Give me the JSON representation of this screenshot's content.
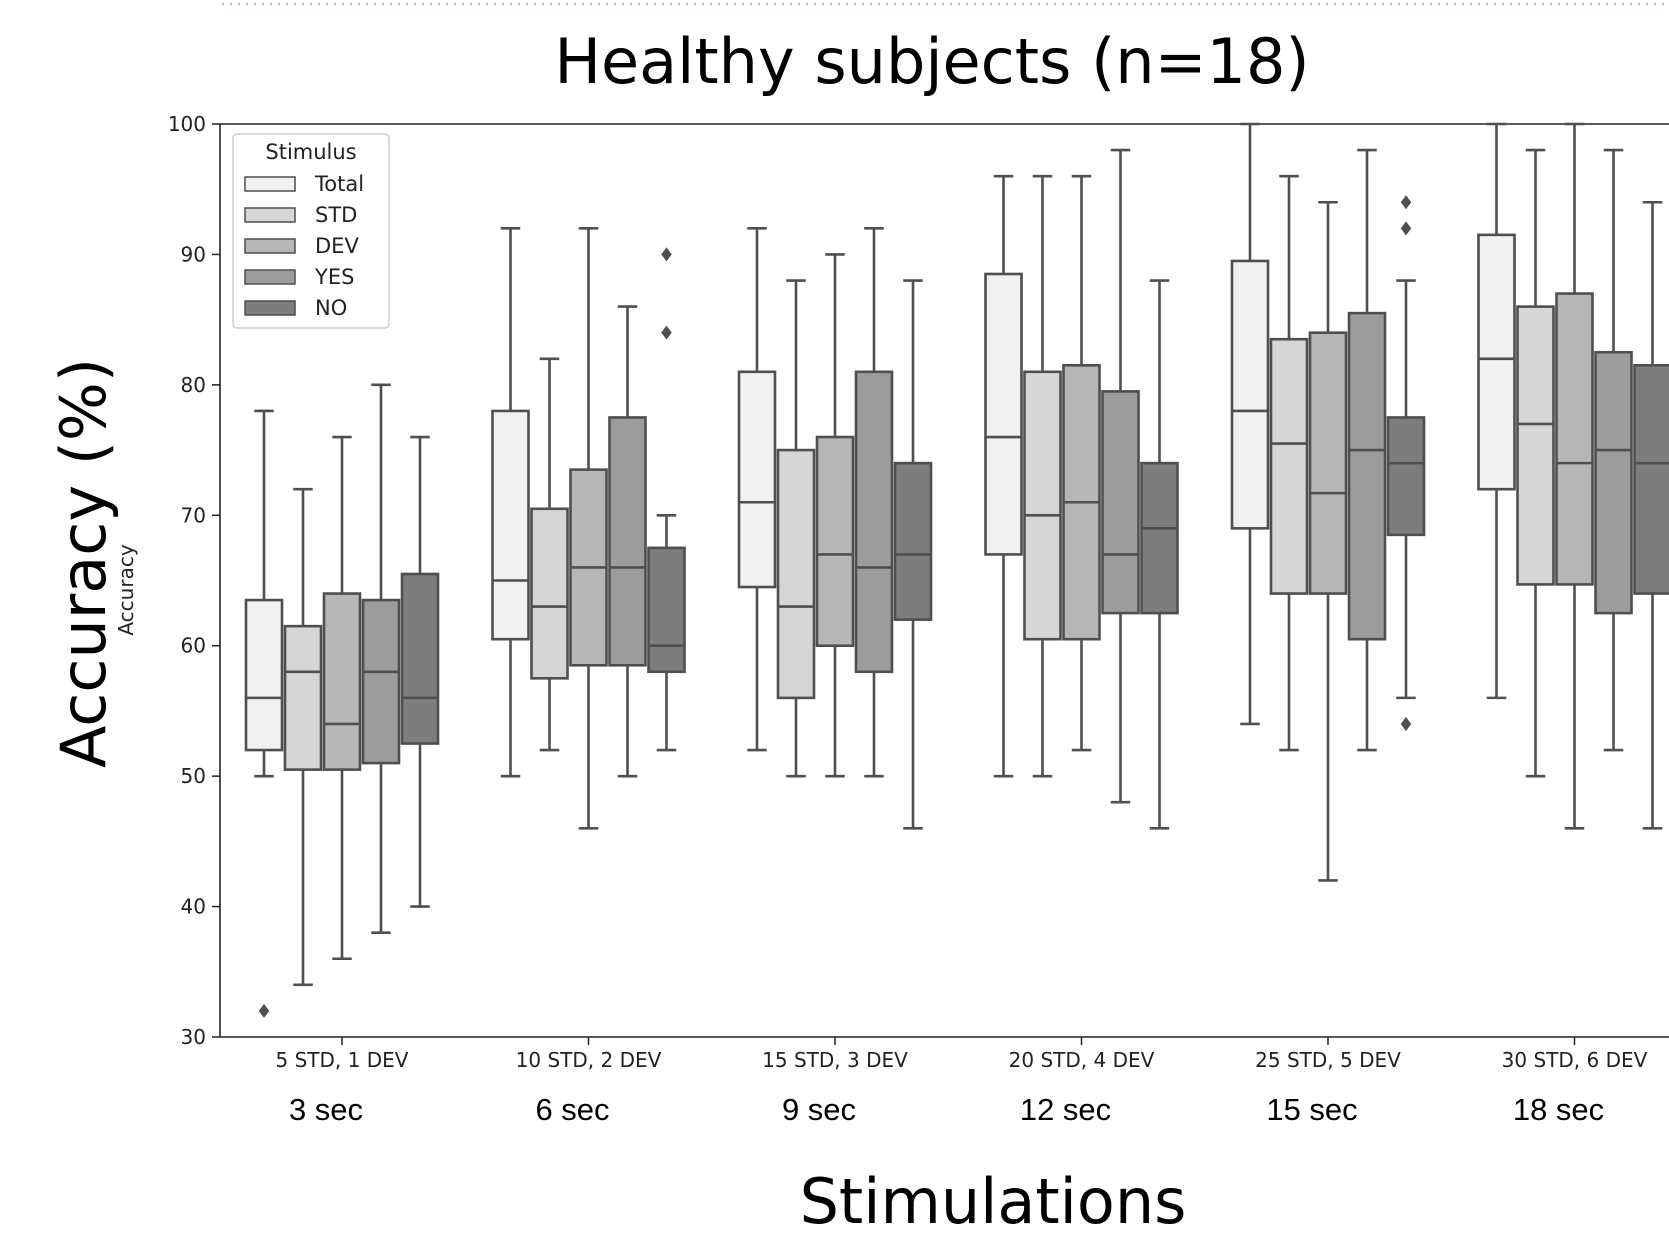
{
  "slide": {
    "title": "Healthy subjects (n=18)",
    "y_label": "Accuracy (%)",
    "x_label": "Stimulations"
  },
  "chart_data": {
    "type": "box",
    "ylabel": "Accuracy",
    "ylim": [
      30,
      100
    ],
    "yticks": [
      30,
      40,
      50,
      60,
      70,
      80,
      90,
      100
    ],
    "grid": false,
    "legend": {
      "title": "Stimulus",
      "placement": "top-left",
      "entries": [
        "Total",
        "STD",
        "DEV",
        "YES",
        "NO"
      ]
    },
    "categories": [
      "5 STD, 1 DEV",
      "10 STD, 2 DEV",
      "15 STD, 3 DEV",
      "20 STD, 4 DEV",
      "25 STD, 5 DEV",
      "30 STD, 6 DEV"
    ],
    "durations": [
      "3 sec",
      "6 sec",
      "9 sec",
      "12 sec",
      "15 sec",
      "18 sec"
    ],
    "series_colors": [
      "#f1f1f1",
      "#d6d6d6",
      "#b6b6b6",
      "#9c9c9c",
      "#7d7d7d"
    ],
    "series": [
      {
        "name": "Total",
        "boxes": [
          {
            "whislo": 50,
            "q1": 52,
            "med": 56,
            "q3": 63.5,
            "whishi": 78,
            "fliers": [
              32
            ]
          },
          {
            "whislo": 50,
            "q1": 60.5,
            "med": 65,
            "q3": 78,
            "whishi": 92,
            "fliers": []
          },
          {
            "whislo": 52,
            "q1": 64.5,
            "med": 71,
            "q3": 81,
            "whishi": 92,
            "fliers": []
          },
          {
            "whislo": 50,
            "q1": 67,
            "med": 76,
            "q3": 88.5,
            "whishi": 96,
            "fliers": []
          },
          {
            "whislo": 54,
            "q1": 69,
            "med": 78,
            "q3": 89.5,
            "whishi": 100,
            "fliers": []
          },
          {
            "whislo": 56,
            "q1": 72,
            "med": 82,
            "q3": 91.5,
            "whishi": 100,
            "fliers": []
          }
        ]
      },
      {
        "name": "STD",
        "boxes": [
          {
            "whislo": 34,
            "q1": 50.5,
            "med": 58,
            "q3": 61.5,
            "whishi": 72,
            "fliers": []
          },
          {
            "whislo": 52,
            "q1": 57.5,
            "med": 63,
            "q3": 70.5,
            "whishi": 82,
            "fliers": []
          },
          {
            "whislo": 50,
            "q1": 56,
            "med": 63,
            "q3": 75,
            "whishi": 88,
            "fliers": []
          },
          {
            "whislo": 50,
            "q1": 60.5,
            "med": 70,
            "q3": 81,
            "whishi": 96,
            "fliers": []
          },
          {
            "whislo": 52,
            "q1": 64,
            "med": 75.5,
            "q3": 83.5,
            "whishi": 96,
            "fliers": []
          },
          {
            "whislo": 50,
            "q1": 64.7,
            "med": 77,
            "q3": 86,
            "whishi": 98,
            "fliers": []
          }
        ]
      },
      {
        "name": "DEV",
        "boxes": [
          {
            "whislo": 36,
            "q1": 50.5,
            "med": 54,
            "q3": 64,
            "whishi": 76,
            "fliers": []
          },
          {
            "whislo": 46,
            "q1": 58.5,
            "med": 66,
            "q3": 73.5,
            "whishi": 92,
            "fliers": []
          },
          {
            "whislo": 50,
            "q1": 60,
            "med": 67,
            "q3": 76,
            "whishi": 90,
            "fliers": []
          },
          {
            "whislo": 52,
            "q1": 60.5,
            "med": 71,
            "q3": 81.5,
            "whishi": 96,
            "fliers": []
          },
          {
            "whislo": 42,
            "q1": 64,
            "med": 71.7,
            "q3": 84,
            "whishi": 94,
            "fliers": []
          },
          {
            "whislo": 46,
            "q1": 64.7,
            "med": 74,
            "q3": 87,
            "whishi": 100,
            "fliers": []
          }
        ]
      },
      {
        "name": "YES",
        "boxes": [
          {
            "whislo": 38,
            "q1": 51,
            "med": 58,
            "q3": 63.5,
            "whishi": 80,
            "fliers": []
          },
          {
            "whislo": 50,
            "q1": 58.5,
            "med": 66,
            "q3": 77.5,
            "whishi": 86,
            "fliers": []
          },
          {
            "whislo": 50,
            "q1": 58,
            "med": 66,
            "q3": 81,
            "whishi": 92,
            "fliers": []
          },
          {
            "whislo": 48,
            "q1": 62.5,
            "med": 67,
            "q3": 79.5,
            "whishi": 98,
            "fliers": []
          },
          {
            "whislo": 52,
            "q1": 60.5,
            "med": 75,
            "q3": 85.5,
            "whishi": 98,
            "fliers": []
          },
          {
            "whislo": 52,
            "q1": 62.5,
            "med": 75,
            "q3": 82.5,
            "whishi": 98,
            "fliers": []
          }
        ]
      },
      {
        "name": "NO",
        "boxes": [
          {
            "whislo": 40,
            "q1": 52.5,
            "med": 56,
            "q3": 65.5,
            "whishi": 76,
            "fliers": []
          },
          {
            "whislo": 52,
            "q1": 58,
            "med": 60,
            "q3": 67.5,
            "whishi": 70,
            "fliers": [
              84,
              90
            ]
          },
          {
            "whislo": 46,
            "q1": 62,
            "med": 67,
            "q3": 74,
            "whishi": 88,
            "fliers": []
          },
          {
            "whislo": 46,
            "q1": 62.5,
            "med": 69,
            "q3": 74,
            "whishi": 88,
            "fliers": []
          },
          {
            "whislo": 56,
            "q1": 68.5,
            "med": 74,
            "q3": 77.5,
            "whishi": 88,
            "fliers": [
              54,
              92,
              94
            ]
          },
          {
            "whislo": 46,
            "q1": 64,
            "med": 74,
            "q3": 81.5,
            "whishi": 94,
            "fliers": []
          }
        ]
      }
    ]
  }
}
